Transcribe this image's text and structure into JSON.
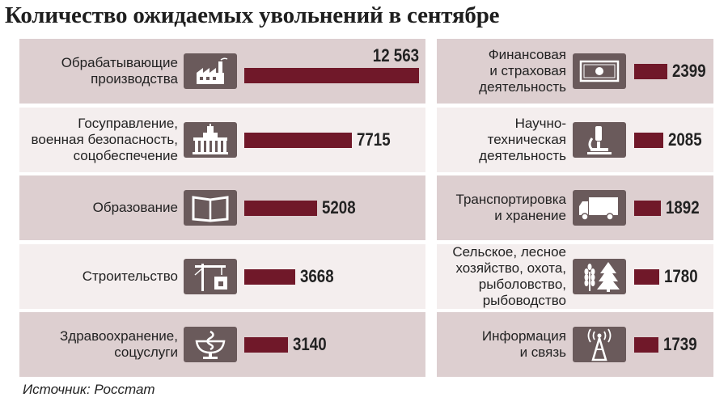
{
  "title": "Количество ожидаемых увольнений в сентябре",
  "source": "Источник: Росстат",
  "colors": {
    "bar": "#701829",
    "row_dark": "#ddcfd0",
    "row_light": "#f4eeee",
    "icon_bg": "#6a5a5b"
  },
  "chart_data": {
    "type": "bar",
    "title": "Количество ожидаемых увольнений в сентябре",
    "orientation": "horizontal",
    "categories": [
      "Обрабатывающие производства",
      "Госуправление, военная безопасность, соцобеспечение",
      "Образование",
      "Строительство",
      "Здравоохранение, соцуслуги",
      "Финансовая и страховая деятельность",
      "Научно-техническая деятельность",
      "Транспортировка и хранение",
      "Сельское, лесное хозяйство, охота, рыболовство, рыбоводство",
      "Информация и связь"
    ],
    "values": [
      12563,
      7715,
      5208,
      3668,
      3140,
      2399,
      2085,
      1892,
      1780,
      1739
    ],
    "value_labels": [
      "12 563",
      "7715",
      "5208",
      "3668",
      "3140",
      "2399",
      "2085",
      "1892",
      "1780",
      "1739"
    ],
    "label_lines": [
      "Обрабатывающие\nпроизводства",
      "Госуправление,\nвоенная безопасность,\nсоцобеспечение",
      "Образование",
      "Строительство",
      "Здравоохранение,\nсоцуслуги",
      "Финансовая\nи страховая\nдеятельность",
      "Научно-\nтехническая\nдеятельность",
      "Транспортировка\nи хранение",
      "Сельское, лесное\nхозяйство, охота,\nрыболовство,\nрыбоводство",
      "Информация\nи связь"
    ],
    "icons": [
      "factory-icon",
      "government-building-icon",
      "open-book-icon",
      "crane-icon",
      "medical-bowl-snake-icon",
      "banknote-icon",
      "microscope-icon",
      "truck-icon",
      "wheat-and-tree-icon",
      "antenna-tower-icon"
    ],
    "xlim": [
      0,
      12563
    ],
    "grid": false,
    "legend": "none"
  }
}
